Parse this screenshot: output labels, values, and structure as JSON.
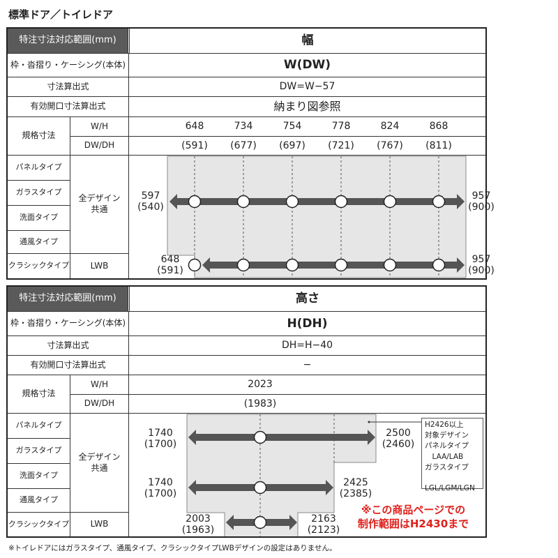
{
  "title": "標準ドア／トイレドア",
  "width_section": {
    "header_label": "特注寸法対応範囲(mm)",
    "header_value": "幅",
    "frame_label": "枠・沓摺り・ケーシング(本体)",
    "frame_value": "W(DW)",
    "calc_label": "寸法算出式",
    "calc_value": "DW=W−57",
    "opening_label": "有効開口寸法算出式",
    "opening_value": "納まり図参照",
    "std_label": "規格寸法",
    "row1_label": "W/H",
    "row2_label": "DW/DH",
    "row1_values": [
      "648",
      "734",
      "754",
      "778",
      "824",
      "868"
    ],
    "row2_values": [
      "(591)",
      "(677)",
      "(697)",
      "(721)",
      "(767)",
      "(811)"
    ],
    "types": [
      "パネルタイプ",
      "ガラスタイプ",
      "洗面タイプ",
      "通風タイプ",
      "クラシックタイプ"
    ],
    "all_design": "全デザイン\n共通",
    "lwb": "LWB",
    "range_all": {
      "min": "597",
      "min_dw": "(540)",
      "max": "957",
      "max_dw": "(900)"
    },
    "range_lwb": {
      "min": "648",
      "min_dw": "(591)",
      "max": "957",
      "max_dw": "(900)"
    }
  },
  "height_section": {
    "header_label": "特注寸法対応範囲(mm)",
    "header_value": "高さ",
    "frame_label": "枠・沓摺り・ケーシング(本体)",
    "frame_value": "H(DH)",
    "calc_label": "寸法算出式",
    "calc_value": "DH=H−40",
    "opening_label": "有効開口寸法算出式",
    "opening_value": "−",
    "std_label": "規格寸法",
    "row1_label": "W/H",
    "row2_label": "DW/DH",
    "row1_value": "2023",
    "row2_value": "(1983)",
    "types": [
      "パネルタイプ",
      "ガラスタイプ",
      "洗面タイプ",
      "通風タイプ",
      "クラシックタイプ"
    ],
    "all_design": "全デザイン\n共通",
    "lwb": "LWB",
    "range_upper": {
      "min": "1740",
      "min_dh": "(1700)",
      "max": "2500",
      "max_dh": "(2460)"
    },
    "range_all": {
      "min": "1740",
      "min_dh": "(1700)",
      "max": "2425",
      "max_dh": "(2385)"
    },
    "range_lwb": {
      "min": "2003",
      "min_dh": "(1963)",
      "max": "2163",
      "max_dh": "(2123)"
    },
    "note_lines": [
      "H2426以上",
      "対象デザイン",
      "パネルタイプ",
      "　LAA/LAB",
      "ガラスタイプ",
      "　LGL/LGM/LGN"
    ],
    "red_note_1": "※この商品ページでの",
    "red_note_2": "制作範囲はH2430まで"
  },
  "footnote": "※トイレドアにはガラスタイプ、通風タイプ、クラシックタイプLWBデザインの設定はありません。",
  "colors": {
    "header_bg": "#5a5a5a",
    "arrow": "#555555",
    "range_fill": "#e6e6e6",
    "red": "#e0201b"
  }
}
